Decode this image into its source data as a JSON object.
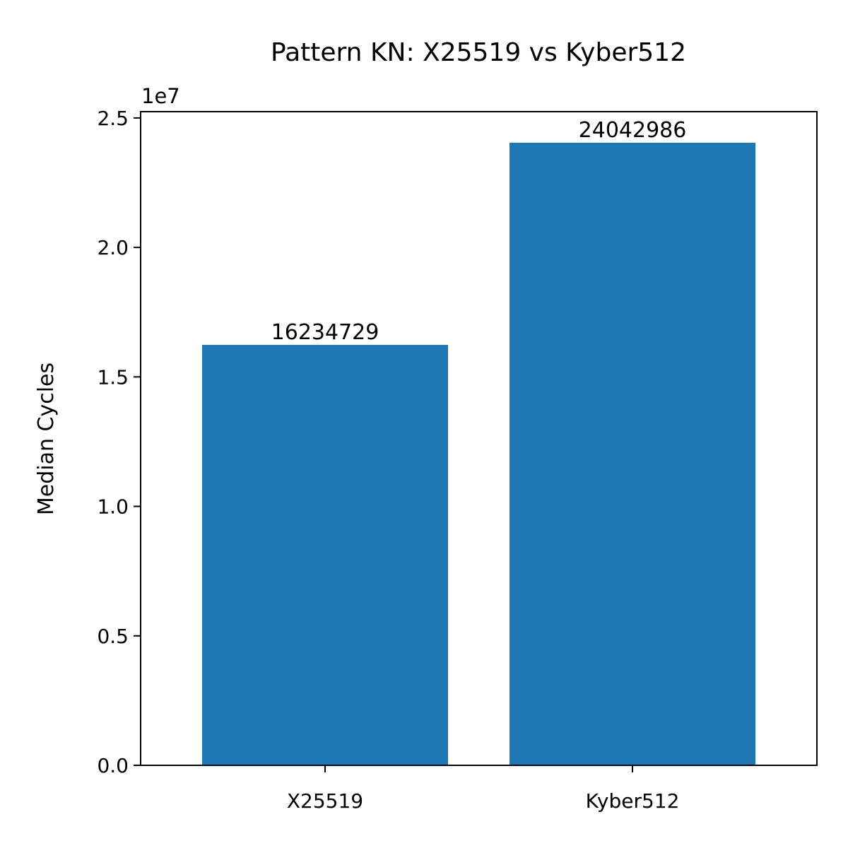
{
  "chart_data": {
    "type": "bar",
    "title": "Pattern KN: X25519 vs Kyber512",
    "xlabel": "",
    "ylabel": "Median Cycles",
    "categories": [
      "X25519",
      "Kyber512"
    ],
    "values": [
      16234729,
      24042986
    ],
    "value_labels": [
      "16234729",
      "24042986"
    ],
    "ylim": [
      0,
      25243000
    ],
    "y_ticks": [
      0,
      5000000,
      10000000,
      15000000,
      20000000,
      25000000
    ],
    "y_tick_labels": [
      "0.0",
      "0.5",
      "1.0",
      "1.5",
      "2.0",
      "2.5"
    ],
    "y_offset_label": "1e7",
    "bar_color": "#1f77b4",
    "grid": false,
    "legend": "none"
  }
}
